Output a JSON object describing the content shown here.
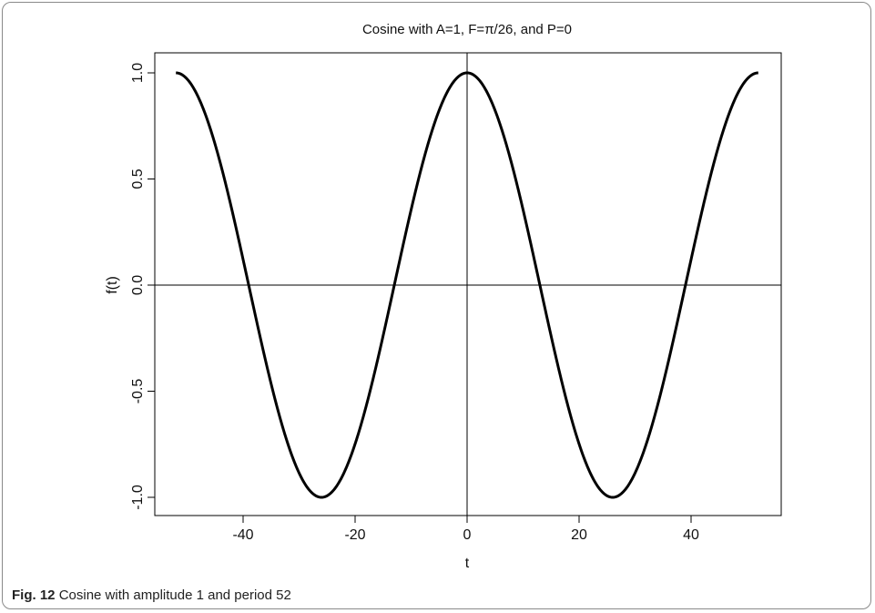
{
  "chart_data": {
    "type": "line",
    "title": "Cosine with A=1, F=π/26, and P=0",
    "xlabel": "t",
    "ylabel": "f(t)",
    "xlim": [
      -52,
      52
    ],
    "ylim": [
      -1.0,
      1.0
    ],
    "xticks": [
      -40,
      -20,
      0,
      20,
      40
    ],
    "yticks": [
      -1.0,
      -0.5,
      0.0,
      0.5,
      1.0
    ],
    "ytick_labels": [
      "-1.0",
      "-0.5",
      "0.0",
      "0.5",
      "1.0"
    ],
    "function": {
      "amplitude": 1,
      "frequency_over_pi": 26,
      "phase": 0
    },
    "reference_lines": {
      "x": 0,
      "y": 0
    },
    "grid": false,
    "legend": "none",
    "line_color": "#000000"
  },
  "caption": {
    "label": "Fig. 12",
    "text": "Cosine with amplitude 1 and period 52"
  }
}
